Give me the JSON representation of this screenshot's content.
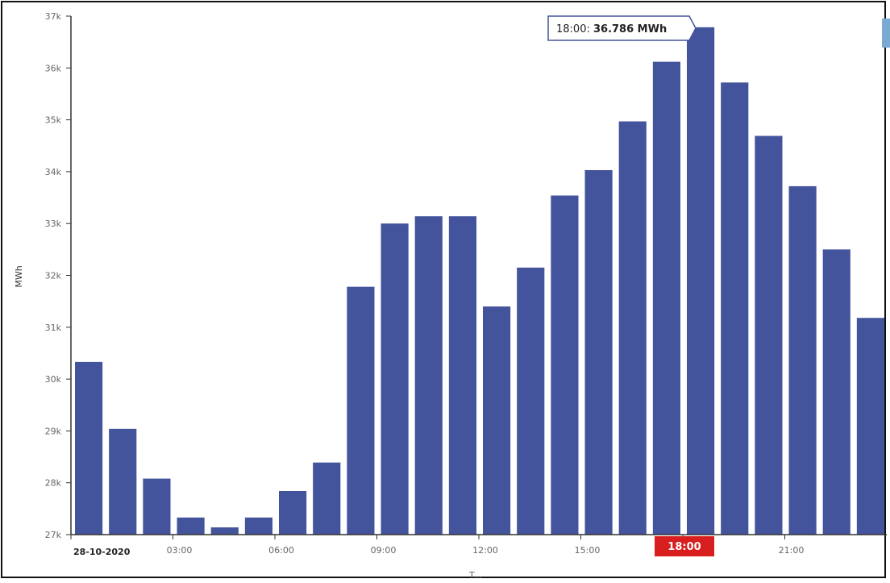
{
  "chart_data": {
    "type": "bar",
    "ylabel": "MWh",
    "xlabel": "T...",
    "ylim": [
      27000,
      37000
    ],
    "y_ticks": [
      "27k",
      "28k",
      "29k",
      "30k",
      "31k",
      "32k",
      "33k",
      "34k",
      "35k",
      "36k",
      "37k"
    ],
    "categories": [
      "00:00",
      "01:00",
      "02:00",
      "03:00",
      "04:00",
      "05:00",
      "06:00",
      "07:00",
      "08:00",
      "09:00",
      "10:00",
      "11:00",
      "12:00",
      "13:00",
      "14:00",
      "15:00",
      "16:00",
      "17:00",
      "18:00",
      "19:00",
      "20:00",
      "21:00",
      "22:00",
      "23:00"
    ],
    "values": [
      30330,
      29040,
      28080,
      27330,
      27140,
      27330,
      27840,
      28390,
      31780,
      33000,
      33140,
      33140,
      31400,
      32150,
      33540,
      34030,
      34970,
      36120,
      36786,
      35720,
      34690,
      33720,
      32500,
      31180
    ],
    "x_tick_labels": [
      {
        "index": 0,
        "label": "28-10-2020"
      },
      {
        "index": 3,
        "label": "03:00"
      },
      {
        "index": 6,
        "label": "06:00"
      },
      {
        "index": 9,
        "label": "09:00"
      },
      {
        "index": 12,
        "label": "12:00"
      },
      {
        "index": 15,
        "label": "15:00"
      },
      {
        "index": 18,
        "label": "18:00"
      },
      {
        "index": 21,
        "label": "21:00"
      }
    ],
    "highlight_index": 18,
    "highlight_label": "18:00",
    "tooltip": {
      "prefix": "18:00: ",
      "value": "36.786 MWh"
    },
    "grid": false,
    "colors": {
      "bar": "#44549c",
      "highlight_bg": "#d81e1e",
      "tooltip_border": "#44549c",
      "axis": "#333333"
    }
  }
}
